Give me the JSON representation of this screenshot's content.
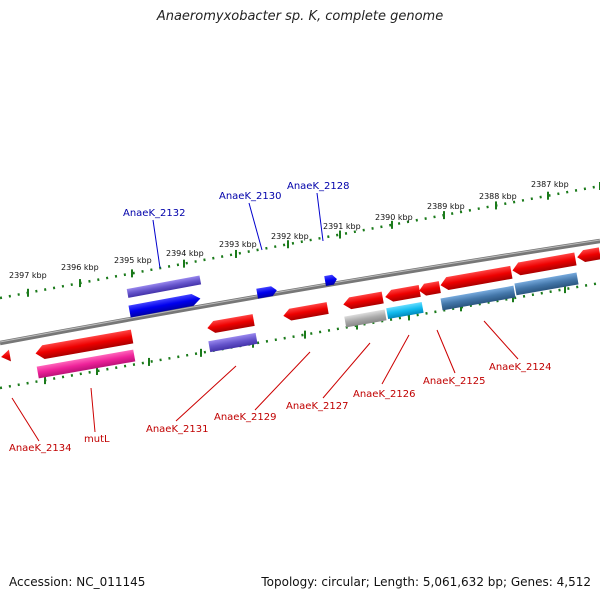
{
  "title": "Anaeromyxobacter sp. K, complete genome",
  "footer": {
    "accession": "Accession: NC_011145",
    "summary": "Topology: circular; Length: 5,061,632 bp; Genes: 4,512"
  },
  "scale_labels": [
    "2397 kbp",
    "2396 kbp",
    "2395 kbp",
    "2394 kbp",
    "2393 kbp",
    "2392 kbp",
    "2391 kbp",
    "2390 kbp",
    "2389 kbp",
    "2388 kbp",
    "2387 kbp"
  ],
  "gene_labels_top": [
    "AnaeK_2132",
    "AnaeK_2130",
    "AnaeK_2128"
  ],
  "gene_labels_bottom": [
    "AnaeK_2134",
    "mutL",
    "AnaeK_2131",
    "AnaeK_2129",
    "AnaeK_2127",
    "AnaeK_2126",
    "AnaeK_2125",
    "AnaeK_2124"
  ],
  "colors": {
    "strand_plus": "#ee0000",
    "strand_minus": "#0000ee",
    "magenta_gene": "#ee2299",
    "lavender_gene": "#6655cc",
    "grey_gene": "#aaaaaa",
    "cyan_gene": "#11bbee",
    "steel_gene": "#4477aa",
    "label_red": "#c00000",
    "label_blue": "#0000aa",
    "tick_green": "#1a7a1a",
    "backbone": "#777777"
  }
}
